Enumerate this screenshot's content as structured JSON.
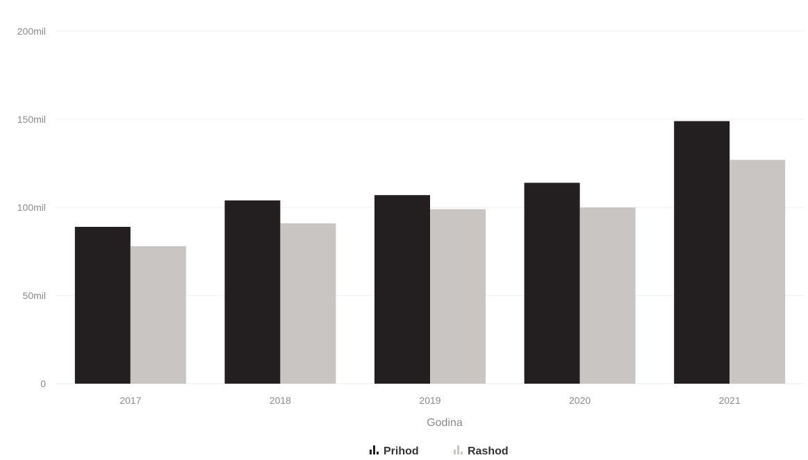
{
  "chart_data": {
    "type": "bar",
    "title": "",
    "xlabel": "Godina",
    "ylabel": "",
    "categories": [
      "2017",
      "2018",
      "2019",
      "2020",
      "2021"
    ],
    "series": [
      {
        "name": "Prihod",
        "color": "#231f20",
        "values": [
          89,
          104,
          107,
          114,
          149
        ]
      },
      {
        "name": "Rashod",
        "color": "#c8c5c2",
        "values": [
          78,
          91,
          99,
          100,
          127
        ]
      }
    ],
    "ylim": [
      0,
      200
    ],
    "yticks": [
      0,
      50,
      100,
      150,
      200
    ],
    "ytick_labels": [
      "0",
      "50mil",
      "100mil",
      "150mil",
      "200mil"
    ],
    "grid": true,
    "legend_position": "bottom-center"
  }
}
